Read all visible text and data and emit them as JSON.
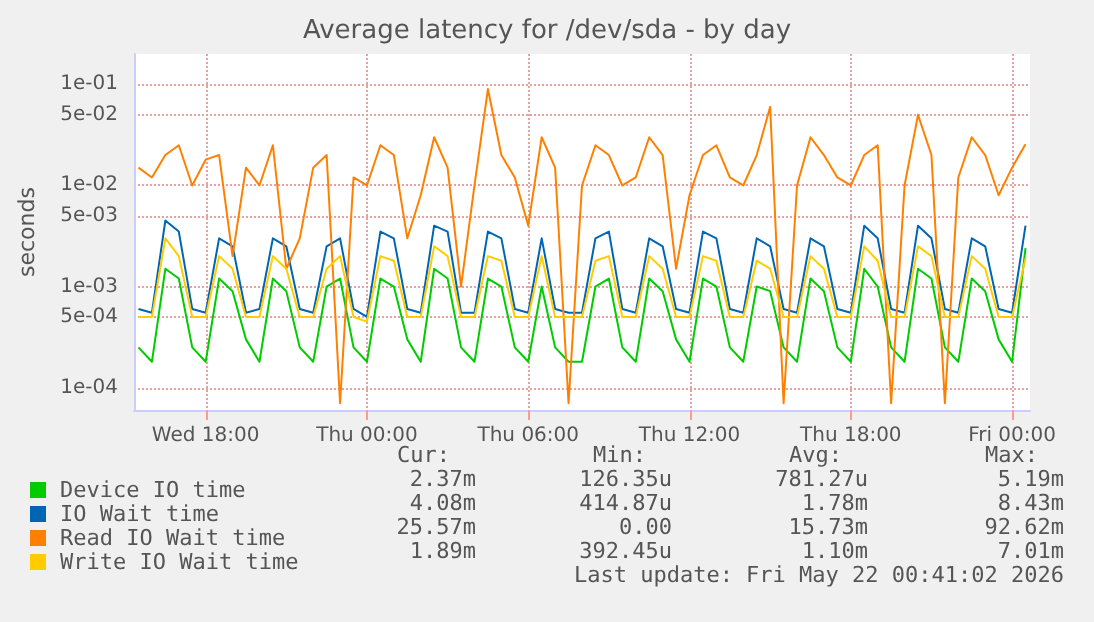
{
  "chart_data": {
    "type": "line",
    "title": "Average latency for /dev/sda - by day",
    "ylabel": "seconds",
    "x": [
      "2026-05-20T15:30",
      "2026-05-20T16:00",
      "2026-05-20T16:30",
      "2026-05-20T17:00",
      "2026-05-20T17:30",
      "2026-05-20T18:00",
      "2026-05-20T18:30",
      "2026-05-20T19:00",
      "2026-05-20T19:30",
      "2026-05-20T20:00",
      "2026-05-20T20:30",
      "2026-05-20T21:00",
      "2026-05-20T21:30",
      "2026-05-20T22:00",
      "2026-05-20T22:30",
      "2026-05-20T23:00",
      "2026-05-20T23:30",
      "2026-05-21T00:00",
      "2026-05-21T00:30",
      "2026-05-21T01:00",
      "2026-05-21T01:30",
      "2026-05-21T02:00",
      "2026-05-21T02:30",
      "2026-05-21T03:00",
      "2026-05-21T03:30",
      "2026-05-21T04:00",
      "2026-05-21T04:30",
      "2026-05-21T05:00",
      "2026-05-21T05:30",
      "2026-05-21T06:00",
      "2026-05-21T06:30",
      "2026-05-21T07:00",
      "2026-05-21T07:30",
      "2026-05-21T08:00",
      "2026-05-21T08:30",
      "2026-05-21T09:00",
      "2026-05-21T09:30",
      "2026-05-21T10:00",
      "2026-05-21T10:30",
      "2026-05-21T11:00",
      "2026-05-21T11:30",
      "2026-05-21T12:00",
      "2026-05-21T12:30",
      "2026-05-21T13:00",
      "2026-05-21T13:30",
      "2026-05-21T14:00",
      "2026-05-21T14:30",
      "2026-05-21T15:00",
      "2026-05-21T15:30",
      "2026-05-21T16:00",
      "2026-05-21T16:30",
      "2026-05-21T17:00",
      "2026-05-21T17:30",
      "2026-05-21T18:00",
      "2026-05-21T18:30",
      "2026-05-21T19:00",
      "2026-05-21T19:30",
      "2026-05-21T20:00",
      "2026-05-21T20:30",
      "2026-05-21T21:00",
      "2026-05-21T21:30",
      "2026-05-21T22:00",
      "2026-05-21T22:30",
      "2026-05-21T23:00",
      "2026-05-21T23:30",
      "2026-05-22T00:00",
      "2026-05-22T00:30"
    ],
    "series": [
      {
        "name": "Device IO time",
        "color": "#00cc00",
        "values": [
          0.00025,
          0.00018,
          0.0015,
          0.0012,
          0.00025,
          0.00018,
          0.0012,
          0.0009,
          0.0003,
          0.00018,
          0.0012,
          0.0009,
          0.00025,
          0.00018,
          0.001,
          0.0012,
          0.00025,
          0.00018,
          0.0012,
          0.001,
          0.0003,
          0.00018,
          0.0015,
          0.0012,
          0.00025,
          0.00018,
          0.0012,
          0.001,
          0.00025,
          0.00018,
          0.001,
          0.00025,
          0.00018,
          0.00018,
          0.001,
          0.0012,
          0.00025,
          0.00018,
          0.0012,
          0.0009,
          0.0003,
          0.00018,
          0.0012,
          0.001,
          0.00025,
          0.00018,
          0.001,
          0.0009,
          0.00025,
          0.00018,
          0.0012,
          0.0009,
          0.00025,
          0.00018,
          0.0015,
          0.001,
          0.00025,
          0.00018,
          0.0015,
          0.0012,
          0.00025,
          0.00018,
          0.0012,
          0.0009,
          0.0003,
          0.00018,
          0.0024
        ]
      },
      {
        "name": "IO Wait time",
        "color": "#0066b3",
        "values": [
          0.0006,
          0.00055,
          0.0045,
          0.0035,
          0.0006,
          0.00055,
          0.003,
          0.0025,
          0.00055,
          0.0006,
          0.003,
          0.0025,
          0.0006,
          0.00055,
          0.0025,
          0.003,
          0.0006,
          0.0005,
          0.0035,
          0.003,
          0.0006,
          0.00055,
          0.004,
          0.0035,
          0.00055,
          0.00055,
          0.0035,
          0.003,
          0.0006,
          0.00055,
          0.003,
          0.0006,
          0.00055,
          0.00055,
          0.003,
          0.0035,
          0.0006,
          0.00055,
          0.003,
          0.0025,
          0.0006,
          0.00055,
          0.0035,
          0.003,
          0.0006,
          0.00055,
          0.003,
          0.0025,
          0.0006,
          0.00055,
          0.003,
          0.0025,
          0.0006,
          0.00055,
          0.004,
          0.003,
          0.0006,
          0.00055,
          0.004,
          0.003,
          0.0006,
          0.00055,
          0.003,
          0.0025,
          0.0006,
          0.00055,
          0.004
        ]
      },
      {
        "name": "Read IO Wait time",
        "color": "#ff8000",
        "values": [
          0.015,
          0.012,
          0.02,
          0.025,
          0.01,
          0.018,
          0.02,
          0.002,
          0.015,
          0.01,
          0.025,
          0.0015,
          0.003,
          0.015,
          0.02,
          7e-05,
          0.012,
          0.01,
          0.025,
          0.02,
          0.003,
          0.008,
          0.03,
          0.015,
          0.001,
          0.01,
          0.09,
          0.02,
          0.012,
          0.004,
          0.03,
          0.015,
          7e-05,
          0.01,
          0.025,
          0.02,
          0.01,
          0.012,
          0.03,
          0.02,
          0.0015,
          0.008,
          0.02,
          0.025,
          0.012,
          0.01,
          0.02,
          0.06,
          7e-05,
          0.01,
          0.03,
          0.02,
          0.012,
          0.01,
          0.02,
          0.025,
          7e-05,
          0.01,
          0.05,
          0.02,
          7e-05,
          0.012,
          0.03,
          0.02,
          0.008,
          0.015,
          0.0256
        ]
      },
      {
        "name": "Write IO Wait time",
        "color": "#ffcc00",
        "values": [
          0.0005,
          0.0005,
          0.003,
          0.002,
          0.0005,
          0.0005,
          0.002,
          0.0015,
          0.0005,
          0.0005,
          0.002,
          0.0015,
          0.0005,
          0.0005,
          0.0015,
          0.002,
          0.0005,
          0.00045,
          0.002,
          0.0018,
          0.0005,
          0.0005,
          0.0025,
          0.002,
          0.0005,
          0.0005,
          0.002,
          0.0018,
          0.0005,
          0.0005,
          0.002,
          0.0005,
          0.0005,
          0.0005,
          0.0018,
          0.002,
          0.0005,
          0.0005,
          0.002,
          0.0015,
          0.0005,
          0.0005,
          0.002,
          0.0018,
          0.0005,
          0.0005,
          0.0018,
          0.0015,
          0.0005,
          0.0005,
          0.002,
          0.0015,
          0.0005,
          0.0005,
          0.0025,
          0.0018,
          0.0005,
          0.0005,
          0.0025,
          0.002,
          0.0005,
          0.0005,
          0.002,
          0.0015,
          0.0005,
          0.0005,
          0.0019
        ]
      }
    ],
    "xlim": [
      "2026-05-20T15:20",
      "2026-05-22T00:40"
    ],
    "xticks": [
      {
        "value": "2026-05-20T18:00",
        "label": "Wed 18:00"
      },
      {
        "value": "2026-05-21T00:00",
        "label": "Thu 00:00"
      },
      {
        "value": "2026-05-21T06:00",
        "label": "Thu 06:00"
      },
      {
        "value": "2026-05-21T12:00",
        "label": "Thu 12:00"
      },
      {
        "value": "2026-05-21T18:00",
        "label": "Thu 18:00"
      },
      {
        "value": "2026-05-22T00:00",
        "label": "Fri 00:00"
      }
    ],
    "ylim": [
      6e-05,
      0.2
    ],
    "yticks": [
      {
        "value": 0.0001,
        "label": "1e-04"
      },
      {
        "value": 0.0005,
        "label": "5e-04"
      },
      {
        "value": 0.001,
        "label": "1e-03"
      },
      {
        "value": 0.005,
        "label": "5e-03"
      },
      {
        "value": 0.01,
        "label": "1e-02"
      },
      {
        "value": 0.05,
        "label": "5e-02"
      },
      {
        "value": 0.1,
        "label": "1e-01"
      }
    ],
    "log": "y",
    "grid": true,
    "legend": "bottom left",
    "marker": "none",
    "line_style": "solid",
    "annotations": [
      "Cur:",
      "Min:",
      "Avg:",
      "Max:",
      "2.37m",
      "126.35u",
      "781.27u",
      "5.19m",
      "4.08m",
      "414.87u",
      "1.78m",
      "8.43m",
      "25.57m",
      "0.00",
      "15.73m",
      "92.62m",
      "1.89m",
      "392.45u",
      "1.10m",
      "7.01m",
      "Last update: Fri May 22 00:41:02 2026"
    ]
  }
}
